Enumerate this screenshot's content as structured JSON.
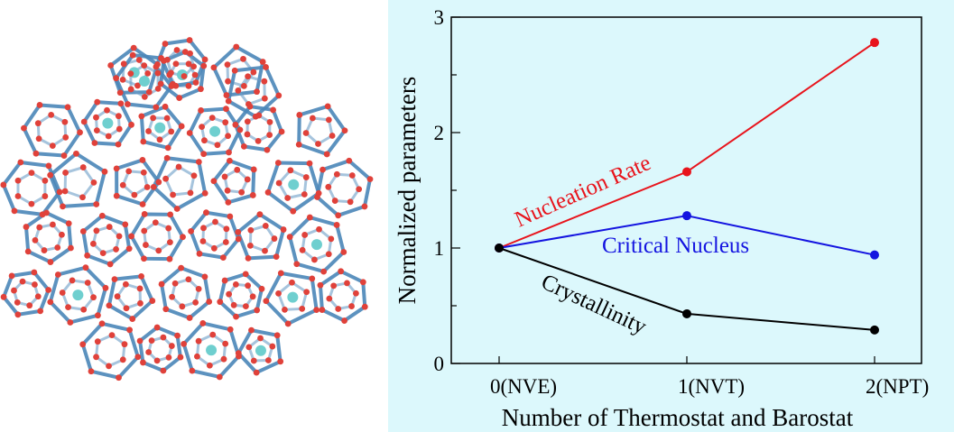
{
  "image": {
    "subject": "molecular-cage-cluster",
    "colors": {
      "bond": "#4a86b8",
      "atom": "#e0413a",
      "guest": "#6fcfcf"
    }
  },
  "chart_data": {
    "type": "line",
    "x": [
      0,
      1,
      2
    ],
    "categories": [
      "0(NVE)",
      "1(NVT)",
      "2(NPT)"
    ],
    "xlabel": "Number of Thermostat and Barostat",
    "ylabel": "Normalized parameters",
    "ylim": [
      0,
      3
    ],
    "yticks": [
      "0",
      "1",
      "2",
      "3"
    ],
    "grid": false,
    "background": "#dcf8fc",
    "series": [
      {
        "name": "Nucleation Rate",
        "color": "#e8141c",
        "values": [
          1,
          1.66,
          2.78
        ]
      },
      {
        "name": "Critical Nucleus",
        "color": "#1414e0",
        "values": [
          1,
          1.28,
          0.94
        ]
      },
      {
        "name": "Crystallinity",
        "color": "#000000",
        "values": [
          1,
          0.43,
          0.29
        ]
      }
    ]
  }
}
